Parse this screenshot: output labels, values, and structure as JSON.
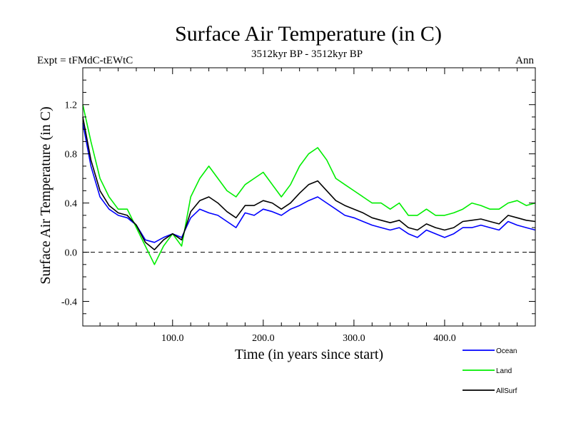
{
  "header": {
    "title": "Surface Air Temperature (in C)",
    "expt": "Expt = tFMdC-tEWtC",
    "period": "3512kyr BP - 3512kyr BP",
    "season": "Ann"
  },
  "chart_data": {
    "type": "line",
    "title": "Surface Air Temperature (in C)",
    "xlabel": "Time (in years since start)",
    "ylabel": "Surface Air Temperature (in C)",
    "xlim": [
      1,
      500
    ],
    "ylim": [
      -0.6,
      1.5
    ],
    "x_ticks": [
      100,
      200,
      300,
      400
    ],
    "x_tick_labels": [
      "100.0",
      "200.0",
      "300.0",
      "400.0"
    ],
    "y_ticks": [
      -0.4,
      0.0,
      0.4,
      0.8,
      1.2
    ],
    "y_tick_labels": [
      "-0.4",
      "0.0",
      "0.4",
      "0.8",
      "1.2"
    ],
    "reference_line": 0.0,
    "legend_position": "bottom-right",
    "series": [
      {
        "name": "Ocean",
        "color": "#0000ff",
        "x": [
          1,
          10,
          20,
          30,
          40,
          50,
          60,
          70,
          80,
          90,
          100,
          110,
          120,
          130,
          140,
          150,
          160,
          170,
          180,
          190,
          200,
          210,
          220,
          230,
          240,
          250,
          260,
          270,
          280,
          290,
          300,
          310,
          320,
          330,
          340,
          350,
          360,
          370,
          380,
          390,
          400,
          410,
          420,
          430,
          440,
          450,
          460,
          470,
          480,
          490,
          500
        ],
        "values": [
          1.05,
          0.7,
          0.45,
          0.35,
          0.3,
          0.28,
          0.22,
          0.1,
          0.08,
          0.12,
          0.15,
          0.12,
          0.28,
          0.35,
          0.32,
          0.3,
          0.25,
          0.2,
          0.32,
          0.3,
          0.35,
          0.33,
          0.3,
          0.35,
          0.38,
          0.42,
          0.45,
          0.4,
          0.35,
          0.3,
          0.28,
          0.25,
          0.22,
          0.2,
          0.18,
          0.2,
          0.15,
          0.12,
          0.18,
          0.15,
          0.12,
          0.15,
          0.2,
          0.2,
          0.22,
          0.2,
          0.18,
          0.25,
          0.22,
          0.2,
          0.18
        ]
      },
      {
        "name": "Land",
        "color": "#00ee00",
        "x": [
          1,
          10,
          20,
          30,
          40,
          50,
          60,
          70,
          80,
          90,
          100,
          110,
          120,
          130,
          140,
          150,
          160,
          170,
          180,
          190,
          200,
          210,
          220,
          230,
          240,
          250,
          260,
          270,
          280,
          290,
          300,
          310,
          320,
          330,
          340,
          350,
          360,
          370,
          380,
          390,
          400,
          410,
          420,
          430,
          440,
          450,
          460,
          470,
          480,
          490,
          500
        ],
        "values": [
          1.2,
          0.9,
          0.6,
          0.45,
          0.35,
          0.35,
          0.2,
          0.05,
          -0.1,
          0.05,
          0.15,
          0.05,
          0.45,
          0.6,
          0.7,
          0.6,
          0.5,
          0.45,
          0.55,
          0.6,
          0.65,
          0.55,
          0.45,
          0.55,
          0.7,
          0.8,
          0.85,
          0.75,
          0.6,
          0.55,
          0.5,
          0.45,
          0.4,
          0.4,
          0.35,
          0.4,
          0.3,
          0.3,
          0.35,
          0.3,
          0.3,
          0.32,
          0.35,
          0.4,
          0.38,
          0.35,
          0.35,
          0.4,
          0.42,
          0.38,
          0.4
        ]
      },
      {
        "name": "AllSurf",
        "color": "#000000",
        "x": [
          1,
          10,
          20,
          30,
          40,
          50,
          60,
          70,
          80,
          90,
          100,
          110,
          120,
          130,
          140,
          150,
          160,
          170,
          180,
          190,
          200,
          210,
          220,
          230,
          240,
          250,
          260,
          270,
          280,
          290,
          300,
          310,
          320,
          330,
          340,
          350,
          360,
          370,
          380,
          390,
          400,
          410,
          420,
          430,
          440,
          450,
          460,
          470,
          480,
          490,
          500
        ],
        "values": [
          1.1,
          0.75,
          0.5,
          0.38,
          0.32,
          0.3,
          0.22,
          0.08,
          0.02,
          0.1,
          0.15,
          0.1,
          0.33,
          0.42,
          0.45,
          0.4,
          0.33,
          0.28,
          0.38,
          0.38,
          0.42,
          0.4,
          0.35,
          0.4,
          0.48,
          0.55,
          0.58,
          0.5,
          0.42,
          0.38,
          0.35,
          0.32,
          0.28,
          0.26,
          0.24,
          0.26,
          0.2,
          0.18,
          0.23,
          0.2,
          0.18,
          0.2,
          0.25,
          0.26,
          0.27,
          0.25,
          0.23,
          0.3,
          0.28,
          0.26,
          0.25
        ]
      }
    ]
  }
}
